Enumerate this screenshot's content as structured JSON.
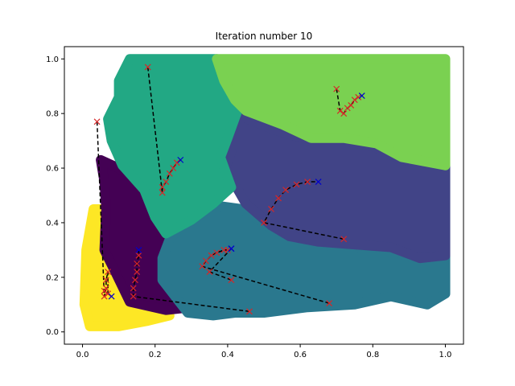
{
  "chart_data": {
    "type": "scatter",
    "title": "Iteration number 10",
    "xlabel": "",
    "ylabel": "",
    "xlim": [
      -0.05,
      1.05
    ],
    "ylim": [
      -0.045,
      1.045
    ],
    "xticks": [
      "0.0",
      "0.2",
      "0.4",
      "0.6",
      "0.8",
      "1.0"
    ],
    "yticks": [
      "0.0",
      "0.2",
      "0.4",
      "0.6",
      "0.8",
      "1.0"
    ],
    "grid": false,
    "legend": "none",
    "regions": [
      {
        "name": "cluster-yellow",
        "color": "#fde725",
        "polygon": [
          [
            0.03,
            0.45
          ],
          [
            0.07,
            0.45
          ],
          [
            0.11,
            0.25
          ],
          [
            0.13,
            0.13
          ],
          [
            0.22,
            0.1
          ],
          [
            0.24,
            0.06
          ],
          [
            0.18,
            0.04
          ],
          [
            0.1,
            0.02
          ],
          [
            0.02,
            0.02
          ],
          [
            0.005,
            0.1
          ],
          [
            0.01,
            0.3
          ]
        ]
      },
      {
        "name": "cluster-purple",
        "color": "#440154",
        "polygon": [
          [
            0.05,
            0.63
          ],
          [
            0.1,
            0.6
          ],
          [
            0.16,
            0.55
          ],
          [
            0.2,
            0.42
          ],
          [
            0.24,
            0.34
          ],
          [
            0.22,
            0.25
          ],
          [
            0.26,
            0.15
          ],
          [
            0.3,
            0.09
          ],
          [
            0.23,
            0.08
          ],
          [
            0.13,
            0.11
          ],
          [
            0.09,
            0.22
          ],
          [
            0.06,
            0.3
          ],
          [
            0.065,
            0.45
          ],
          [
            0.06,
            0.55
          ]
        ]
      },
      {
        "name": "cluster-teal-dark",
        "color": "#2a788e",
        "polygon": [
          [
            0.24,
            0.34
          ],
          [
            0.33,
            0.47
          ],
          [
            0.44,
            0.45
          ],
          [
            0.52,
            0.38
          ],
          [
            0.58,
            0.35
          ],
          [
            0.65,
            0.32
          ],
          [
            0.72,
            0.31
          ],
          [
            0.85,
            0.3
          ],
          [
            0.93,
            0.26
          ],
          [
            1.0,
            0.28
          ],
          [
            1.0,
            0.14
          ],
          [
            0.95,
            0.1
          ],
          [
            0.85,
            0.13
          ],
          [
            0.75,
            0.1
          ],
          [
            0.62,
            0.09
          ],
          [
            0.5,
            0.07
          ],
          [
            0.42,
            0.07
          ],
          [
            0.36,
            0.06
          ],
          [
            0.29,
            0.07
          ],
          [
            0.22,
            0.19
          ],
          [
            0.22,
            0.27
          ]
        ]
      },
      {
        "name": "cluster-indigo",
        "color": "#414487",
        "polygon": [
          [
            0.42,
            0.8
          ],
          [
            0.53,
            0.74
          ],
          [
            0.63,
            0.7
          ],
          [
            0.72,
            0.7
          ],
          [
            0.8,
            0.68
          ],
          [
            0.88,
            0.63
          ],
          [
            1.0,
            0.61
          ],
          [
            1.0,
            0.28
          ],
          [
            0.93,
            0.27
          ],
          [
            0.85,
            0.31
          ],
          [
            0.75,
            0.32
          ],
          [
            0.65,
            0.33
          ],
          [
            0.57,
            0.35
          ],
          [
            0.52,
            0.39
          ],
          [
            0.45,
            0.47
          ],
          [
            0.42,
            0.54
          ],
          [
            0.39,
            0.59
          ],
          [
            0.41,
            0.66
          ],
          [
            0.38,
            0.74
          ]
        ]
      },
      {
        "name": "cluster-green-teal",
        "color": "#22a884",
        "polygon": [
          [
            0.1,
            0.92
          ],
          [
            0.13,
            1.0
          ],
          [
            0.26,
            1.0
          ],
          [
            0.37,
            1.0
          ],
          [
            0.39,
            0.91
          ],
          [
            0.43,
            0.82
          ],
          [
            0.4,
            0.71
          ],
          [
            0.38,
            0.64
          ],
          [
            0.41,
            0.53
          ],
          [
            0.36,
            0.47
          ],
          [
            0.3,
            0.41
          ],
          [
            0.23,
            0.36
          ],
          [
            0.2,
            0.42
          ],
          [
            0.17,
            0.52
          ],
          [
            0.11,
            0.61
          ],
          [
            0.08,
            0.7
          ],
          [
            0.07,
            0.78
          ],
          [
            0.1,
            0.86
          ]
        ]
      },
      {
        "name": "cluster-light-green",
        "color": "#7ad151",
        "polygon": [
          [
            0.37,
            1.0
          ],
          [
            1.0,
            1.0
          ],
          [
            1.0,
            0.61
          ],
          [
            0.88,
            0.64
          ],
          [
            0.81,
            0.69
          ],
          [
            0.72,
            0.71
          ],
          [
            0.63,
            0.71
          ],
          [
            0.55,
            0.76
          ],
          [
            0.45,
            0.81
          ],
          [
            0.42,
            0.85
          ],
          [
            0.39,
            0.92
          ]
        ]
      }
    ],
    "centroid_paths": [
      {
        "start": [
          0.18,
          0.97
        ],
        "current": [
          0.27,
          0.63
        ],
        "trail": [
          [
            0.22,
            0.51
          ],
          [
            0.22,
            0.53
          ],
          [
            0.23,
            0.55
          ],
          [
            0.24,
            0.58
          ],
          [
            0.25,
            0.6
          ],
          [
            0.26,
            0.62
          ]
        ]
      },
      {
        "start": [
          0.04,
          0.77
        ],
        "current": [
          0.08,
          0.13
        ],
        "trail": [
          [
            0.06,
            0.13
          ],
          [
            0.065,
            0.16
          ],
          [
            0.065,
            0.19
          ],
          [
            0.07,
            0.22
          ],
          [
            0.07,
            0.14
          ],
          [
            0.06,
            0.15
          ]
        ]
      },
      {
        "start": [
          0.7,
          0.89
        ],
        "current": [
          0.77,
          0.865
        ],
        "trail": [
          [
            0.71,
            0.81
          ],
          [
            0.72,
            0.8
          ],
          [
            0.73,
            0.82
          ],
          [
            0.74,
            0.83
          ],
          [
            0.75,
            0.85
          ],
          [
            0.76,
            0.86
          ]
        ]
      },
      {
        "start": [
          0.72,
          0.34
        ],
        "current": [
          0.65,
          0.55
        ],
        "trail": [
          [
            0.5,
            0.4
          ],
          [
            0.52,
            0.45
          ],
          [
            0.54,
            0.49
          ],
          [
            0.56,
            0.52
          ],
          [
            0.59,
            0.54
          ],
          [
            0.62,
            0.55
          ]
        ]
      },
      {
        "start": [
          0.46,
          0.075
        ],
        "current": [
          0.155,
          0.3
        ],
        "trail": [
          [
            0.14,
            0.13
          ],
          [
            0.14,
            0.16
          ],
          [
            0.145,
            0.19
          ],
          [
            0.15,
            0.22
          ],
          [
            0.15,
            0.25
          ],
          [
            0.155,
            0.28
          ]
        ]
      },
      {
        "start": [
          0.68,
          0.105
        ],
        "current": [
          0.41,
          0.305
        ],
        "trail": [
          [
            0.33,
            0.24
          ],
          [
            0.34,
            0.26
          ],
          [
            0.355,
            0.28
          ],
          [
            0.37,
            0.29
          ],
          [
            0.39,
            0.3
          ],
          [
            0.4,
            0.3
          ]
        ]
      },
      {
        "start": [
          0.41,
          0.19
        ],
        "current": [
          0.41,
          0.305
        ],
        "trail": [
          [
            0.35,
            0.22
          ]
        ]
      }
    ],
    "marker_colors": {
      "history": "#d62728",
      "current": "#0000cc",
      "path": "#000000"
    }
  }
}
